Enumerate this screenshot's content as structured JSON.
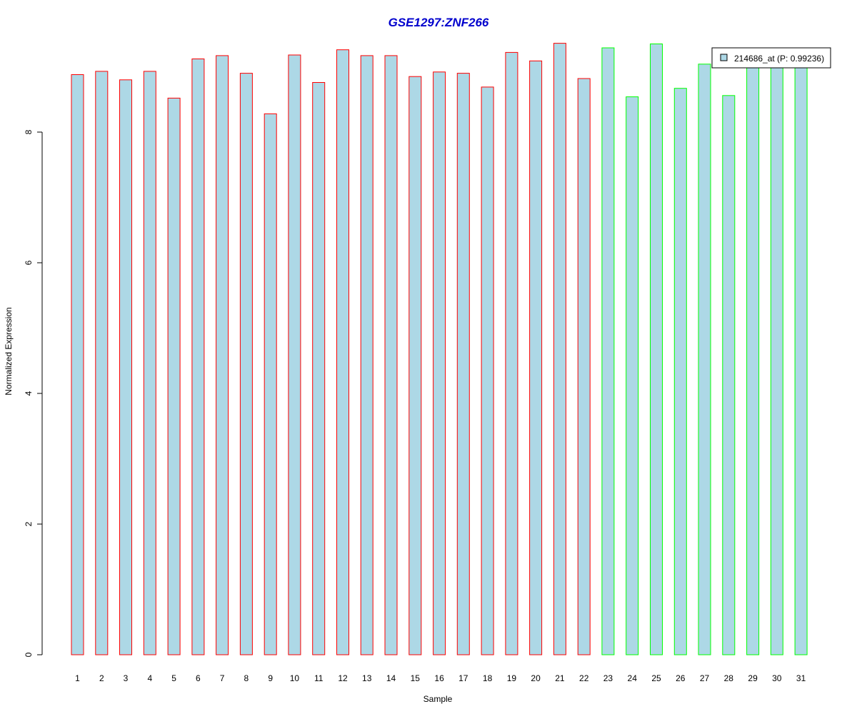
{
  "chart_data": {
    "type": "bar",
    "title": "GSE1297:ZNF266",
    "xlabel": "Sample",
    "ylabel": "Normalized Expression",
    "ylim": [
      0,
      9.4
    ],
    "yticks": [
      0,
      2,
      4,
      6,
      8
    ],
    "categories": [
      "1",
      "2",
      "3",
      "4",
      "5",
      "6",
      "7",
      "8",
      "9",
      "10",
      "11",
      "12",
      "13",
      "14",
      "15",
      "16",
      "17",
      "18",
      "19",
      "20",
      "21",
      "22",
      "23",
      "24",
      "25",
      "26",
      "27",
      "28",
      "29",
      "30",
      "31"
    ],
    "values": [
      8.88,
      8.93,
      8.8,
      8.93,
      8.52,
      9.12,
      9.17,
      8.9,
      8.28,
      9.18,
      8.76,
      9.26,
      9.17,
      9.17,
      8.85,
      8.92,
      8.9,
      8.69,
      9.22,
      9.09,
      9.36,
      8.82,
      9.29,
      8.54,
      9.35,
      8.67,
      9.04,
      8.56,
      9.02,
      9.02,
      9.02
    ],
    "groups": [
      "red",
      "red",
      "red",
      "red",
      "red",
      "red",
      "red",
      "red",
      "red",
      "red",
      "red",
      "red",
      "red",
      "red",
      "red",
      "red",
      "red",
      "red",
      "red",
      "red",
      "red",
      "red",
      "green",
      "green",
      "green",
      "green",
      "green",
      "green",
      "green",
      "green",
      "green"
    ],
    "fill_color": "#ADD8E6",
    "group_colors": {
      "red": "#FF0000",
      "green": "#00FF00"
    },
    "title_color": "#0000CD",
    "legend": {
      "label": "214686_at (P: 0.99236)",
      "position": "top-right"
    },
    "grid": false
  }
}
